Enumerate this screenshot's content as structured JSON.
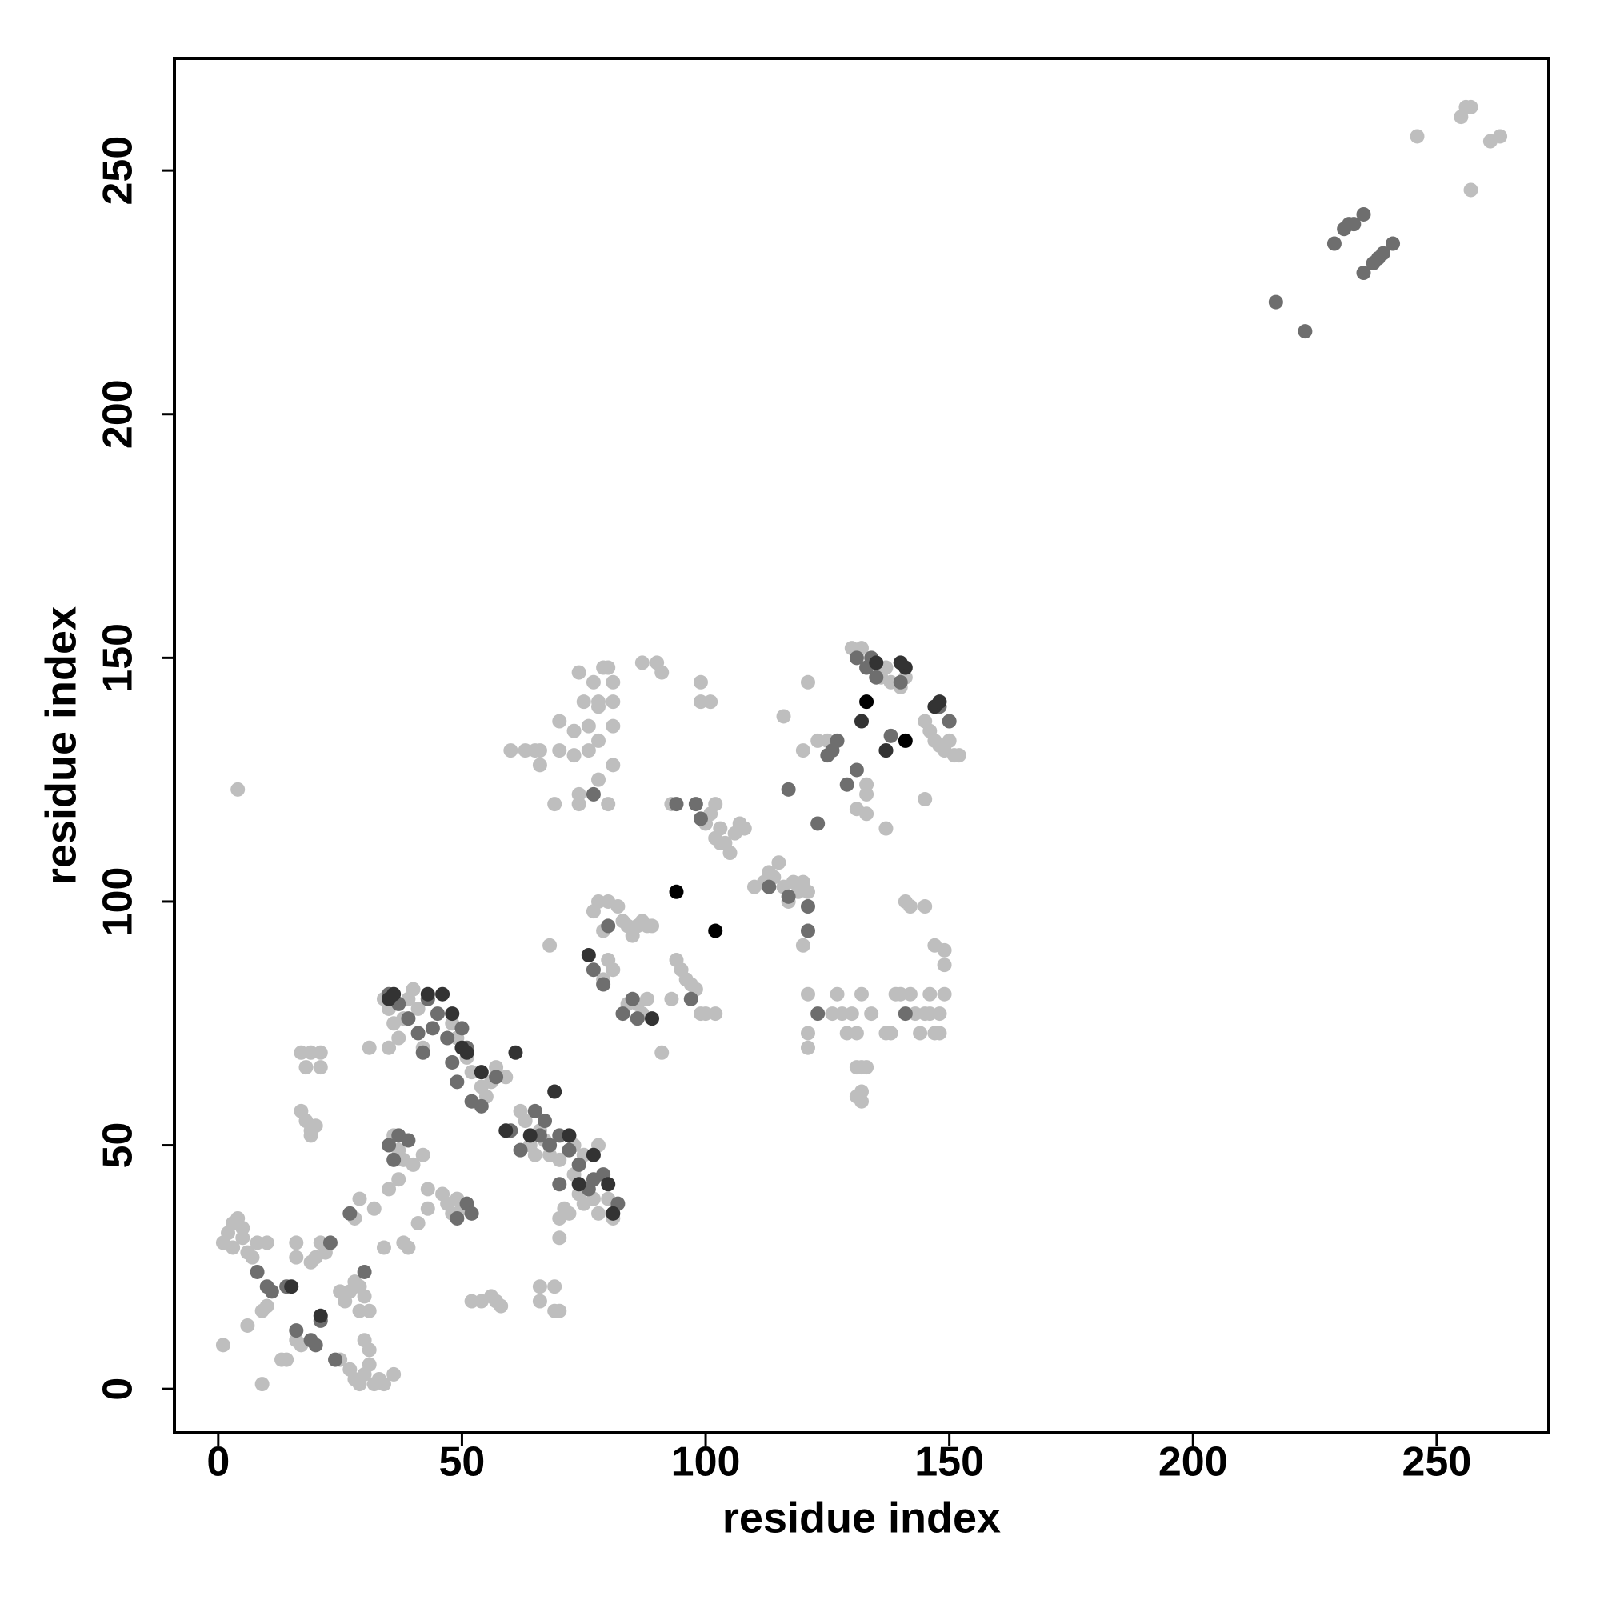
{
  "chart_data": {
    "type": "scatter",
    "xlabel": "residue index",
    "ylabel": "residue index",
    "xlim": [
      -9,
      273
    ],
    "ylim": [
      -9,
      273
    ],
    "xticks": [
      0,
      50,
      100,
      150,
      200,
      250
    ],
    "yticks": [
      0,
      50,
      100,
      150,
      200,
      250
    ],
    "series": [
      {
        "color": "#bebebe",
        "x": [
          1,
          4,
          1,
          2,
          3,
          4,
          5,
          6,
          7,
          8,
          10,
          3,
          5,
          6,
          9,
          10,
          9,
          13,
          14,
          16,
          17,
          16,
          16,
          20,
          21,
          22,
          19,
          17,
          19,
          21,
          18,
          21,
          17,
          18,
          19,
          20,
          19,
          25,
          27,
          28,
          29,
          30,
          31,
          32,
          33,
          34,
          36,
          30,
          31,
          29,
          31,
          27,
          28,
          29,
          30,
          25,
          26,
          28,
          29,
          32,
          34,
          35,
          37,
          38,
          39,
          41,
          43,
          31,
          34,
          35,
          36,
          35,
          37,
          38,
          39,
          40,
          41,
          42,
          36,
          37,
          38,
          40,
          42,
          43,
          46,
          47,
          48,
          49,
          50,
          48,
          49,
          51,
          52,
          54,
          55,
          56,
          57,
          59,
          52,
          54,
          56,
          57,
          58,
          62,
          63,
          64,
          65,
          66,
          67,
          68,
          70,
          66,
          66,
          69,
          69,
          70,
          70,
          70,
          71,
          72,
          73,
          74,
          75,
          77,
          78,
          80,
          81,
          73,
          75,
          78,
          68,
          69,
          70,
          70,
          73,
          73,
          74,
          74,
          74,
          75,
          76,
          77,
          78,
          78,
          78,
          78,
          79,
          80,
          81,
          81,
          81,
          81,
          80,
          76,
          63,
          65,
          66,
          66,
          60,
          78,
          77,
          79,
          80,
          82,
          83,
          84,
          85,
          86,
          87,
          88,
          89,
          80,
          81,
          79,
          84,
          86,
          87,
          88,
          87,
          90,
          91,
          91,
          93,
          94,
          95,
          96,
          97,
          98,
          99,
          100,
          102,
          93,
          99,
          99,
          101,
          100,
          101,
          102,
          103,
          104,
          105,
          106,
          107,
          108,
          103,
          102,
          110,
          112,
          113,
          114,
          115,
          116,
          117,
          118,
          119,
          120,
          121,
          116,
          121,
          123,
          125,
          120,
          120,
          121,
          121,
          121,
          126,
          127,
          128,
          129,
          130,
          131,
          131,
          132,
          132,
          131,
          132,
          133,
          132,
          134,
          131,
          133,
          133,
          133,
          137,
          137,
          138,
          139,
          140,
          142,
          143,
          144,
          145,
          146,
          146,
          147,
          148,
          148,
          149,
          142,
          141,
          145,
          147,
          149,
          149,
          145,
          130,
          131,
          132,
          134,
          136,
          137,
          138,
          140,
          141,
          145,
          146,
          147,
          148,
          149,
          150,
          151,
          152,
          246,
          255,
          256,
          257,
          257,
          261,
          263
        ],
        "values": [
          9,
          123,
          30,
          32,
          34,
          35,
          31,
          28,
          27,
          30,
          30,
          29,
          33,
          13,
          16,
          17,
          1,
          6,
          6,
          10,
          9,
          27,
          30,
          27,
          30,
          28,
          26,
          69,
          69,
          69,
          66,
          66,
          57,
          55,
          52,
          54,
          53,
          6,
          4,
          2,
          1,
          3,
          5,
          1,
          2,
          1,
          3,
          10,
          8,
          16,
          16,
          20,
          22,
          21,
          19,
          20,
          18,
          35,
          39,
          37,
          29,
          41,
          43,
          30,
          29,
          34,
          37,
          70,
          80,
          78,
          75,
          70,
          72,
          76,
          80,
          82,
          78,
          70,
          52,
          49,
          47,
          46,
          48,
          41,
          40,
          38,
          36,
          39,
          37,
          75,
          72,
          68,
          65,
          62,
          60,
          63,
          66,
          64,
          18,
          18,
          19,
          18,
          17,
          57,
          55,
          50,
          48,
          53,
          51,
          48,
          47,
          21,
          18,
          21,
          16,
          16,
          31,
          35,
          37,
          36,
          44,
          40,
          38,
          39,
          36,
          39,
          35,
          50,
          48,
          50,
          91,
          120,
          131,
          137,
          135,
          130,
          122,
          120,
          147,
          141,
          136,
          145,
          141,
          125,
          133,
          140,
          148,
          148,
          145,
          141,
          136,
          128,
          120,
          131,
          131,
          131,
          128,
          131,
          131,
          100,
          98,
          94,
          100,
          99,
          96,
          95,
          93,
          95,
          96,
          95,
          95,
          88,
          86,
          84,
          79,
          79,
          77,
          80,
          149,
          149,
          147,
          69,
          80,
          88,
          86,
          84,
          83,
          82,
          77,
          77,
          77,
          120,
          145,
          141,
          141,
          116,
          118,
          120,
          115,
          112,
          110,
          114,
          116,
          115,
          112,
          113,
          103,
          104,
          106,
          105,
          108,
          103,
          100,
          104,
          102,
          104,
          102,
          138,
          145,
          133,
          133,
          131,
          91,
          81,
          73,
          70,
          77,
          81,
          77,
          73,
          77,
          73,
          66,
          66,
          61,
          60,
          59,
          66,
          81,
          77,
          119,
          118,
          124,
          122,
          115,
          73,
          73,
          81,
          81,
          81,
          77,
          73,
          77,
          81,
          77,
          73,
          73,
          77,
          81,
          99,
          100,
          99,
          91,
          90,
          87,
          121,
          152,
          150,
          152,
          149,
          146,
          148,
          145,
          144,
          146,
          137,
          135,
          133,
          132,
          131,
          133,
          130,
          130,
          257,
          261,
          263,
          263,
          246,
          256,
          257
        ]
      },
      {
        "color": "#6e6e6e",
        "x": [
          8,
          10,
          11,
          14,
          16,
          19,
          20,
          21,
          23,
          24,
          27,
          30,
          35,
          36,
          37,
          39,
          43,
          44,
          42,
          45,
          35,
          37,
          39,
          41,
          47,
          48,
          49,
          50,
          51,
          52,
          54,
          57,
          60,
          62,
          65,
          66,
          67,
          68,
          70,
          72,
          74,
          76,
          77,
          79,
          82,
          70,
          49,
          51,
          52,
          77,
          77,
          79,
          80,
          83,
          85,
          86,
          94,
          97,
          98,
          99,
          113,
          117,
          117,
          121,
          121,
          123,
          123,
          125,
          126,
          127,
          129,
          131,
          131,
          133,
          134,
          135,
          137,
          138,
          140,
          141,
          148,
          150,
          217,
          223,
          229,
          231,
          232,
          233,
          235,
          235,
          237,
          238,
          239,
          241
        ],
        "values": [
          24,
          21,
          20,
          21,
          12,
          10,
          9,
          14,
          30,
          6,
          36,
          24,
          50,
          47,
          52,
          51,
          80,
          74,
          69,
          77,
          81,
          79,
          76,
          73,
          72,
          67,
          63,
          74,
          70,
          59,
          58,
          64,
          53,
          49,
          57,
          52,
          55,
          50,
          52,
          49,
          46,
          41,
          43,
          44,
          38,
          42,
          35,
          38,
          36,
          122,
          86,
          83,
          95,
          77,
          80,
          76,
          120,
          80,
          120,
          117,
          103,
          123,
          101,
          99,
          94,
          116,
          77,
          130,
          131,
          133,
          124,
          127,
          150,
          148,
          150,
          146,
          131,
          134,
          145,
          77,
          140,
          137,
          223,
          217,
          235,
          238,
          239,
          239,
          241,
          229,
          231,
          232,
          233,
          235
        ]
      },
      {
        "color": "#333333",
        "x": [
          15,
          21,
          48,
          50,
          51,
          54,
          61,
          59,
          64,
          69,
          72,
          77,
          80,
          81,
          74,
          46,
          43,
          35,
          36,
          76,
          89,
          132,
          135,
          137,
          141,
          147,
          148,
          140
        ],
        "values": [
          21,
          15,
          77,
          70,
          69,
          65,
          69,
          53,
          52,
          61,
          52,
          48,
          42,
          36,
          42,
          81,
          81,
          80,
          81,
          89,
          76,
          137,
          149,
          131,
          148,
          140,
          141,
          149
        ]
      },
      {
        "color": "#000000",
        "x": [
          94,
          102,
          133,
          141
        ],
        "values": [
          102,
          94,
          141,
          133
        ]
      }
    ]
  }
}
